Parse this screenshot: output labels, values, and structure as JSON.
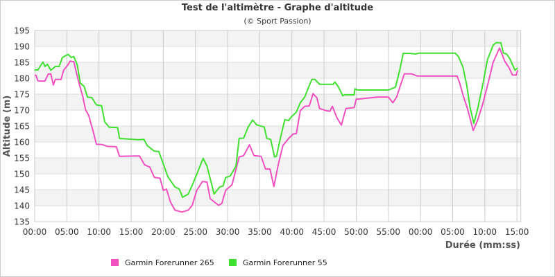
{
  "chart_data": {
    "type": "line",
    "title": "Test de l'altimètre - Graphe d'altitude",
    "subtitle": "(© Sport Passion)",
    "xlabel": "Durée (mm:ss)",
    "ylabel": "Altitude (m)",
    "x_unit": "minutes",
    "xlim": [
      0,
      75.6
    ],
    "ylim": [
      135,
      195
    ],
    "y_ticks": [
      135,
      140,
      145,
      150,
      155,
      160,
      165,
      170,
      175,
      180,
      185,
      190,
      195
    ],
    "x_ticks": [
      0,
      5,
      10,
      15,
      20,
      25,
      30,
      35,
      40,
      45,
      50,
      55,
      60,
      65,
      70,
      75
    ],
    "x_tick_labels": [
      "00:00",
      "05:00",
      "10:00",
      "15:00",
      "20:00",
      "25:00",
      "30:00",
      "35:00",
      "40:00",
      "45:00",
      "50:00",
      "55:00",
      "00:00",
      "05:00",
      "10:00",
      "15:00"
    ],
    "grid": true,
    "legend_position": "bottom",
    "series": [
      {
        "name": "Garmin Forerunner 265",
        "color": "#f050c0",
        "points": [
          [
            0,
            181
          ],
          [
            0.2,
            180.9
          ],
          [
            0.5,
            179.2
          ],
          [
            1.6,
            179.1
          ],
          [
            2.1,
            181.3
          ],
          [
            2.5,
            181.4
          ],
          [
            2.9,
            177.9
          ],
          [
            3.2,
            179.6
          ],
          [
            4.1,
            179.6
          ],
          [
            4.5,
            182.5
          ],
          [
            5.2,
            184.3
          ],
          [
            5.5,
            185.4
          ],
          [
            6.1,
            185.2
          ],
          [
            6.4,
            182.5
          ],
          [
            6.8,
            179.2
          ],
          [
            7.5,
            174.1
          ],
          [
            7.9,
            170.2
          ],
          [
            8.4,
            168.3
          ],
          [
            9.1,
            163.3
          ],
          [
            9.6,
            159.3
          ],
          [
            10.5,
            159.2
          ],
          [
            11.3,
            158.6
          ],
          [
            12.7,
            158.5
          ],
          [
            13.2,
            155.5
          ],
          [
            15.7,
            155.6
          ],
          [
            16.3,
            155.6
          ],
          [
            17.1,
            152.8
          ],
          [
            17.9,
            152.1
          ],
          [
            18.6,
            148.9
          ],
          [
            19.5,
            148.6
          ],
          [
            20.0,
            144.8
          ],
          [
            20.5,
            145.2
          ],
          [
            21.1,
            141.2
          ],
          [
            21.8,
            138.6
          ],
          [
            22.9,
            138.0
          ],
          [
            23.9,
            138.6
          ],
          [
            24.5,
            140.1
          ],
          [
            25.2,
            144.8
          ],
          [
            26.1,
            147.6
          ],
          [
            26.8,
            147.4
          ],
          [
            27.3,
            142.2
          ],
          [
            28.6,
            140.1
          ],
          [
            29.1,
            140.7
          ],
          [
            29.7,
            144.8
          ],
          [
            30.7,
            146.6
          ],
          [
            31.8,
            155.3
          ],
          [
            32.5,
            155.7
          ],
          [
            33.4,
            159.1
          ],
          [
            34.1,
            155.7
          ],
          [
            35.2,
            155.5
          ],
          [
            35.9,
            151.5
          ],
          [
            36.6,
            151.5
          ],
          [
            37.2,
            146.0
          ],
          [
            37.9,
            153.1
          ],
          [
            38.6,
            158.9
          ],
          [
            39.5,
            161.1
          ],
          [
            40.2,
            162.5
          ],
          [
            40.7,
            162.6
          ],
          [
            41.3,
            169.8
          ],
          [
            42.0,
            171.2
          ],
          [
            42.7,
            171.3
          ],
          [
            43.3,
            175.2
          ],
          [
            43.9,
            173.8
          ],
          [
            44.3,
            170.5
          ],
          [
            45.4,
            169.8
          ],
          [
            45.9,
            169.6
          ],
          [
            46.3,
            171.2
          ],
          [
            47.0,
            167.6
          ],
          [
            47.7,
            165.3
          ],
          [
            48.4,
            170.5
          ],
          [
            49.7,
            170.8
          ],
          [
            50.0,
            173.4
          ],
          [
            53.4,
            174.1
          ],
          [
            55.0,
            174.1
          ],
          [
            55.7,
            172.3
          ],
          [
            56.3,
            174.1
          ],
          [
            57.0,
            178.5
          ],
          [
            57.5,
            181.4
          ],
          [
            58.6,
            181.4
          ],
          [
            59.5,
            180.7
          ],
          [
            65.7,
            180.7
          ],
          [
            66.1,
            178.5
          ],
          [
            66.6,
            174.8
          ],
          [
            67.3,
            170.5
          ],
          [
            68.2,
            163.6
          ],
          [
            68.9,
            166.9
          ],
          [
            69.7,
            172.0
          ],
          [
            70.6,
            179.2
          ],
          [
            71.3,
            185.0
          ],
          [
            72.3,
            189.5
          ],
          [
            73.1,
            185.4
          ],
          [
            73.8,
            183.2
          ],
          [
            74.3,
            181.0
          ],
          [
            74.9,
            181.0
          ],
          [
            75.1,
            182.5
          ]
        ]
      },
      {
        "name": "Garmin Forerunner 55",
        "color": "#40e030",
        "points": [
          [
            0,
            182.6
          ],
          [
            0.5,
            182.6
          ],
          [
            1.3,
            185.1
          ],
          [
            1.6,
            183.7
          ],
          [
            2.0,
            184.4
          ],
          [
            2.5,
            182.5
          ],
          [
            3.2,
            183.7
          ],
          [
            3.8,
            183.7
          ],
          [
            4.3,
            186.5
          ],
          [
            5.2,
            187.5
          ],
          [
            5.7,
            186.5
          ],
          [
            6.1,
            186.8
          ],
          [
            6.6,
            184.3
          ],
          [
            7.1,
            178.5
          ],
          [
            7.7,
            177.4
          ],
          [
            8.2,
            174.1
          ],
          [
            8.9,
            173.9
          ],
          [
            9.6,
            171.6
          ],
          [
            10.4,
            171.4
          ],
          [
            10.9,
            166.3
          ],
          [
            11.6,
            164.6
          ],
          [
            12.9,
            164.5
          ],
          [
            13.2,
            161.1
          ],
          [
            16.1,
            160.7
          ],
          [
            17.0,
            160.8
          ],
          [
            17.5,
            158.9
          ],
          [
            18.6,
            157.1
          ],
          [
            19.3,
            157.0
          ],
          [
            20.0,
            153.1
          ],
          [
            20.7,
            149.1
          ],
          [
            21.8,
            145.9
          ],
          [
            22.5,
            145.2
          ],
          [
            23.0,
            142.6
          ],
          [
            23.9,
            143.7
          ],
          [
            24.7,
            147.3
          ],
          [
            25.5,
            151.3
          ],
          [
            26.2,
            154.9
          ],
          [
            26.8,
            152.4
          ],
          [
            27.9,
            143.7
          ],
          [
            28.8,
            145.9
          ],
          [
            29.3,
            146.2
          ],
          [
            29.7,
            148.8
          ],
          [
            30.4,
            149.3
          ],
          [
            31.3,
            152.4
          ],
          [
            31.8,
            161.1
          ],
          [
            32.5,
            161.2
          ],
          [
            33.2,
            164.7
          ],
          [
            33.9,
            166.9
          ],
          [
            34.5,
            165.4
          ],
          [
            35.7,
            164.7
          ],
          [
            36.1,
            161.1
          ],
          [
            36.7,
            160.8
          ],
          [
            37.3,
            155.3
          ],
          [
            37.6,
            155.5
          ],
          [
            38.2,
            161.1
          ],
          [
            38.9,
            167.0
          ],
          [
            39.5,
            166.7
          ],
          [
            39.8,
            167.6
          ],
          [
            40.7,
            169.4
          ],
          [
            41.3,
            172.3
          ],
          [
            42.0,
            174.1
          ],
          [
            42.5,
            176.7
          ],
          [
            43.1,
            179.6
          ],
          [
            43.6,
            179.6
          ],
          [
            44.3,
            178.1
          ],
          [
            46.4,
            178.1
          ],
          [
            46.7,
            178.8
          ],
          [
            47.2,
            177.4
          ],
          [
            47.9,
            174.5
          ],
          [
            48.2,
            174.8
          ],
          [
            49.7,
            174.8
          ],
          [
            49.8,
            176.7
          ],
          [
            50.2,
            176.3
          ],
          [
            55.0,
            176.3
          ],
          [
            56.1,
            177.2
          ],
          [
            56.8,
            182.8
          ],
          [
            57.3,
            187.8
          ],
          [
            58.4,
            187.8
          ],
          [
            59.3,
            187.6
          ],
          [
            59.7,
            187.9
          ],
          [
            65.4,
            187.9
          ],
          [
            65.9,
            186.8
          ],
          [
            66.6,
            183.5
          ],
          [
            67.2,
            177.8
          ],
          [
            67.7,
            170.9
          ],
          [
            68.3,
            165.8
          ],
          [
            68.9,
            170.5
          ],
          [
            69.7,
            178.1
          ],
          [
            70.4,
            185.7
          ],
          [
            71.3,
            190.4
          ],
          [
            71.8,
            191.2
          ],
          [
            72.5,
            191.1
          ],
          [
            72.9,
            187.9
          ],
          [
            73.4,
            187.6
          ],
          [
            73.9,
            186.1
          ],
          [
            74.7,
            182.5
          ],
          [
            75.1,
            183.2
          ]
        ]
      }
    ]
  }
}
